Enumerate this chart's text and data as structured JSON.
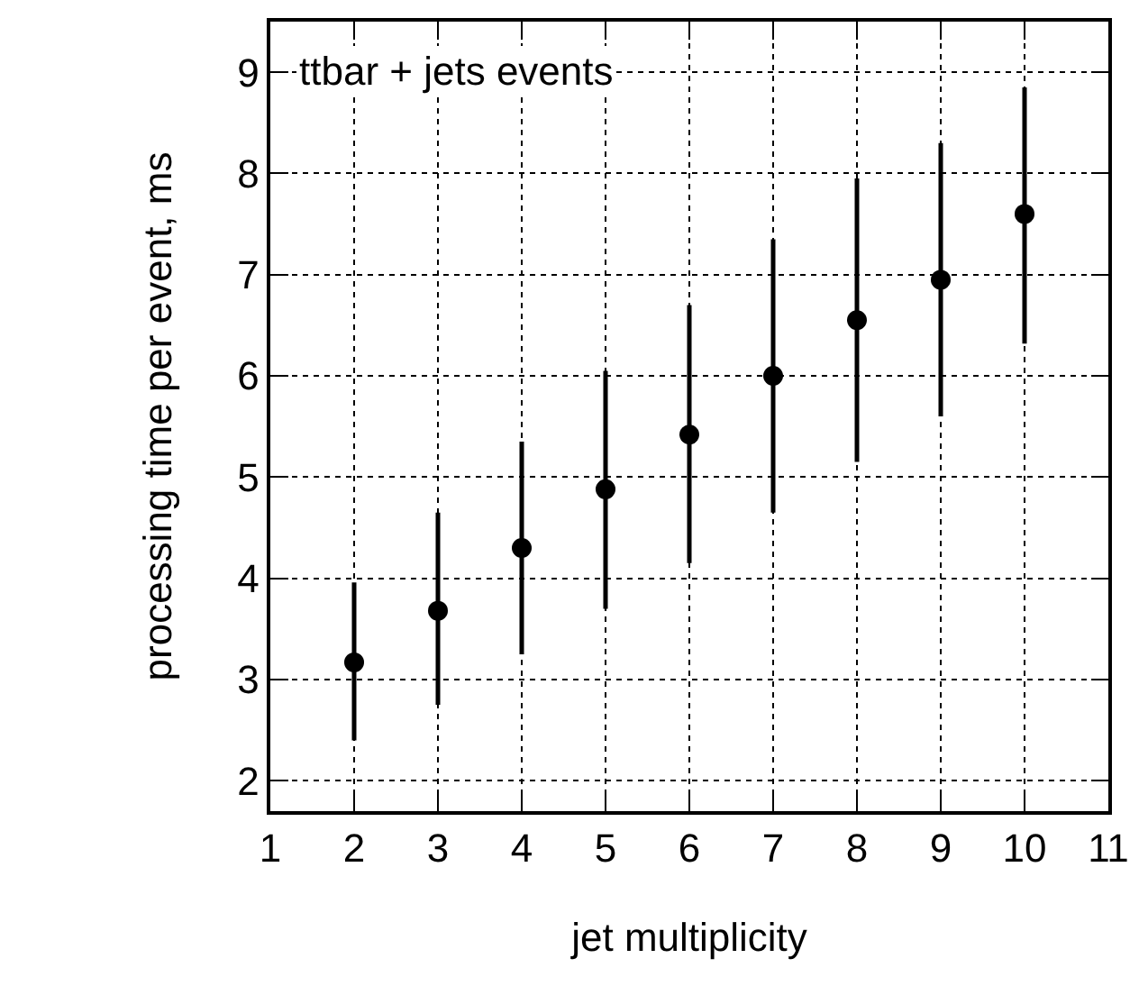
{
  "chart_data": {
    "type": "scatter",
    "xlabel": "jet multiplicity",
    "ylabel": "processing time per event, ms",
    "annotations": [
      "ttbar + jets events"
    ],
    "x": [
      2,
      3,
      4,
      5,
      6,
      7,
      8,
      9,
      10
    ],
    "series": [
      {
        "color": "#000000",
        "values": [
          3.17,
          3.68,
          4.3,
          4.88,
          5.42,
          6.0,
          6.55,
          6.95,
          7.6
        ],
        "errors": [
          [
            2.4,
            3.96
          ],
          [
            2.75,
            4.65
          ],
          [
            3.25,
            5.35
          ],
          [
            3.7,
            6.05
          ],
          [
            4.15,
            6.7
          ],
          [
            4.65,
            7.35
          ],
          [
            5.15,
            7.95
          ],
          [
            5.6,
            8.3
          ],
          [
            6.32,
            8.85
          ]
        ]
      }
    ],
    "xlim": [
      1,
      11
    ],
    "xticks": [
      1,
      2,
      3,
      4,
      5,
      6,
      7,
      8,
      9,
      10,
      11
    ],
    "ylim": [
      1.7,
      9.5
    ],
    "yticks": [
      2,
      3,
      4,
      5,
      6,
      7,
      8,
      9
    ],
    "grid": true,
    "marker": "circle"
  }
}
